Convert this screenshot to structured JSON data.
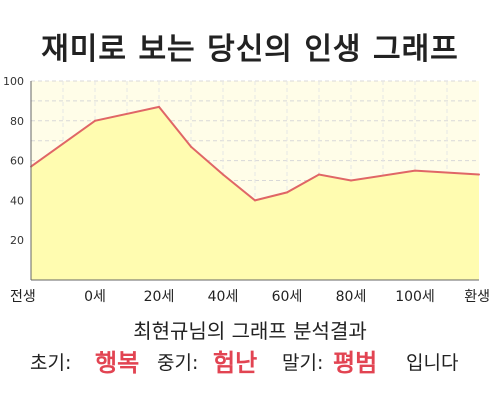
{
  "title": "재미로 보는 당신의 인생 그래프",
  "subtitle": "최현규님의 그래프 분석결과",
  "summary": {
    "early_label": "초기:",
    "early_value": "행복",
    "mid_label": "중기:",
    "mid_value": "험난",
    "late_label": "말기:",
    "late_value": "평범",
    "ending": "입니다"
  },
  "colors": {
    "line": "#e06666",
    "area": "#fffcb0",
    "result": "#e24452",
    "plot_bg": "#fffde8"
  },
  "chart_data": {
    "type": "area",
    "title": "재미로 보는 당신의 인생 그래프",
    "xlabel": "",
    "ylabel": "",
    "x_ticks": [
      "전생",
      "0세",
      "20세",
      "40세",
      "60세",
      "80세",
      "100세",
      "환생"
    ],
    "x": [
      -20,
      0,
      20,
      30,
      40,
      50,
      60,
      70,
      80,
      100,
      120
    ],
    "y": [
      57,
      80,
      87,
      67,
      53,
      40,
      44,
      53,
      50,
      55,
      53
    ],
    "xlim": [
      -20,
      120
    ],
    "ylim": [
      0,
      100
    ],
    "y_ticks": [
      20,
      40,
      60,
      80,
      100
    ],
    "grid": true,
    "legend": "none"
  }
}
